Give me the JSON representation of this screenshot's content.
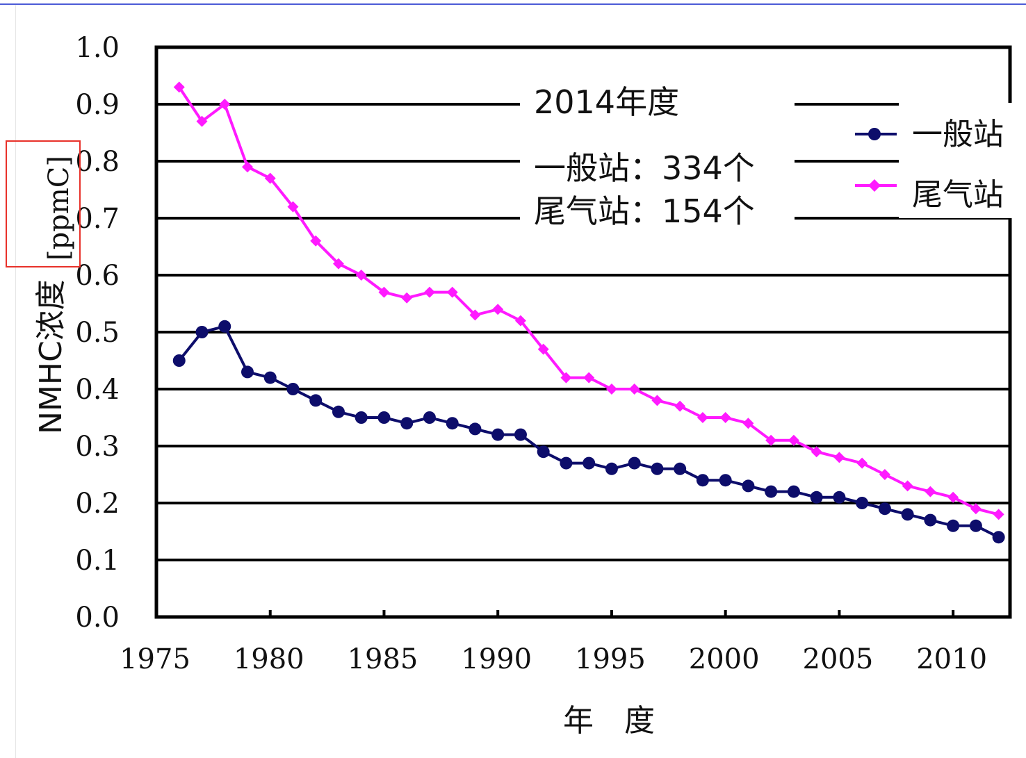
{
  "colors": {
    "general": "#0d0d6b",
    "roadside": "#ff1aff",
    "grid": "#000000",
    "highlight": "#e8312a"
  },
  "chart_data": {
    "type": "line",
    "xlabel": "年　度",
    "ylabel": "NMHC浓度",
    "yunit": "[ppmC]",
    "ylim": [
      0.0,
      1.0
    ],
    "yticks": [
      "0.0",
      "0.1",
      "0.2",
      "0.3",
      "0.4",
      "0.5",
      "0.6",
      "0.7",
      "0.8",
      "0.9",
      "1.0"
    ],
    "xlim": [
      1975,
      2012.5
    ],
    "xticks": [
      1975,
      1980,
      1985,
      1990,
      1995,
      2000,
      2005,
      2010
    ],
    "grid": true,
    "annotation": {
      "year": "2014年度",
      "general_count": "一般站：334个",
      "roadside_count": "尾气站：154个"
    },
    "legend_position": "top-right",
    "series": [
      {
        "name": "一般站",
        "marker": "circle",
        "color": "#0d0d6b",
        "x": [
          1976,
          1977,
          1978,
          1979,
          1980,
          1981,
          1982,
          1983,
          1984,
          1985,
          1986,
          1987,
          1988,
          1989,
          1990,
          1991,
          1992,
          1993,
          1994,
          1995,
          1996,
          1997,
          1998,
          1999,
          2000,
          2001,
          2002,
          2003,
          2004,
          2005,
          2006,
          2007,
          2008,
          2009,
          2010,
          2011,
          2012
        ],
        "values": [
          0.45,
          0.5,
          0.51,
          0.43,
          0.42,
          0.4,
          0.38,
          0.36,
          0.35,
          0.35,
          0.34,
          0.35,
          0.34,
          0.33,
          0.32,
          0.32,
          0.29,
          0.27,
          0.27,
          0.26,
          0.27,
          0.26,
          0.26,
          0.24,
          0.24,
          0.23,
          0.22,
          0.22,
          0.21,
          0.21,
          0.2,
          0.19,
          0.18,
          0.17,
          0.16,
          0.16,
          0.14
        ]
      },
      {
        "name": "尾气站",
        "marker": "diamond",
        "color": "#ff1aff",
        "x": [
          1976,
          1977,
          1978,
          1979,
          1980,
          1981,
          1982,
          1983,
          1984,
          1985,
          1986,
          1987,
          1988,
          1989,
          1990,
          1991,
          1992,
          1993,
          1994,
          1995,
          1996,
          1997,
          1998,
          1999,
          2000,
          2001,
          2002,
          2003,
          2004,
          2005,
          2006,
          2007,
          2008,
          2009,
          2010,
          2011,
          2012
        ],
        "values": [
          0.93,
          0.87,
          0.9,
          0.79,
          0.77,
          0.72,
          0.66,
          0.62,
          0.6,
          0.57,
          0.56,
          0.57,
          0.57,
          0.53,
          0.54,
          0.52,
          0.47,
          0.42,
          0.42,
          0.4,
          0.4,
          0.38,
          0.37,
          0.35,
          0.35,
          0.34,
          0.31,
          0.31,
          0.29,
          0.28,
          0.27,
          0.25,
          0.23,
          0.22,
          0.21,
          0.19,
          0.18
        ]
      }
    ]
  }
}
